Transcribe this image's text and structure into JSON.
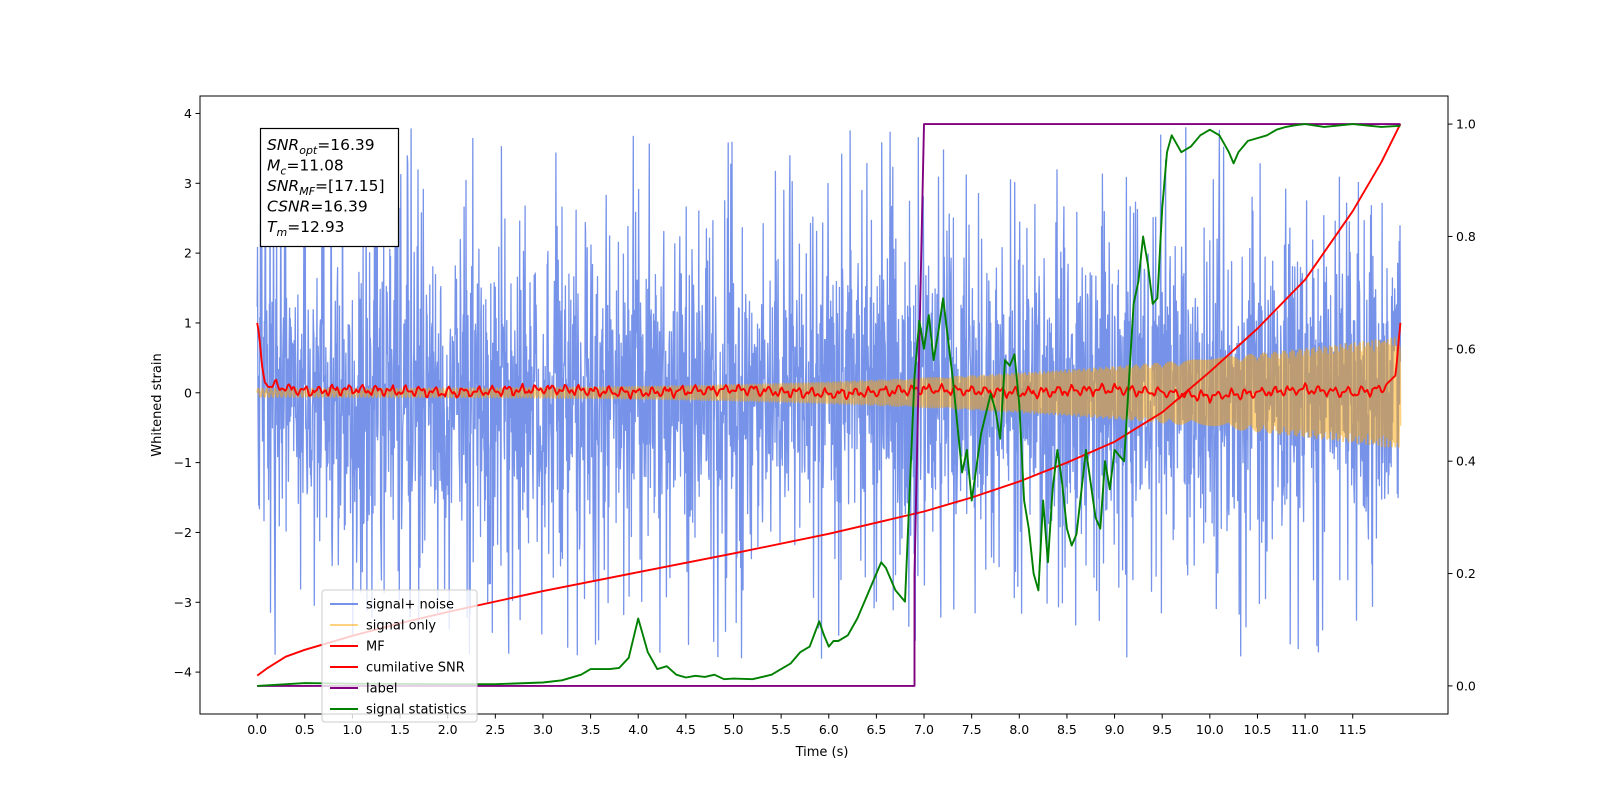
{
  "chart_data": {
    "type": "line",
    "title": "",
    "xlabel": "Time (s)",
    "ylabel": "Whitened strain",
    "ylabel_right": "",
    "xlim": [
      -0.6,
      12.5
    ],
    "ylim": [
      -4.6,
      4.25
    ],
    "ylim_right": [
      -0.05,
      1.05
    ],
    "xticks": [
      0.0,
      0.5,
      1.0,
      1.5,
      2.0,
      2.5,
      3.0,
      3.5,
      4.0,
      4.5,
      5.0,
      5.5,
      6.0,
      6.5,
      7.0,
      7.5,
      8.0,
      8.5,
      9.0,
      9.5,
      10.0,
      10.5,
      11.0,
      11.5
    ],
    "xtick_labels": [
      "0.0",
      "0.5",
      "1.0",
      "1.5",
      "2.0",
      "2.5",
      "3.0",
      "3.5",
      "4.0",
      "4.5",
      "5.0",
      "5.5",
      "6.0",
      "6.5",
      "7.0",
      "7.5",
      "8.0",
      "8.5",
      "9.0",
      "9.5",
      "10.0",
      "10.5",
      "11.0",
      "11.5"
    ],
    "yticks": [
      -4,
      -3,
      -2,
      -1,
      0,
      1,
      2,
      3,
      4
    ],
    "ytick_labels": [
      "−4",
      "−3",
      "−2",
      "−1",
      "0",
      "1",
      "2",
      "3",
      "4"
    ],
    "yticks_right": [
      0.0,
      0.2,
      0.4,
      0.6,
      0.8,
      1.0
    ],
    "ytick_labels_right": [
      "0.0",
      "0.2",
      "0.4",
      "0.6",
      "0.8",
      "1.0"
    ],
    "grid": false,
    "legend_position": "lower-left",
    "info_box": [
      {
        "sym": "SNR",
        "sub": "opt",
        "text": "=16.39"
      },
      {
        "sym": "M",
        "sub": "c",
        "text": "=11.08"
      },
      {
        "sym": "SNR",
        "sub": "MF",
        "text": "=[17.15]"
      },
      {
        "sym": "CSNR",
        "sub": "",
        "text": "=16.39"
      },
      {
        "sym": "T",
        "sub": "m",
        "text": "=12.93"
      }
    ],
    "series": [
      {
        "name": "signal+ noise",
        "color": "#4169e1",
        "axis": "left",
        "style": "noise",
        "x_range": [
          0.0,
          12.0
        ],
        "amplitude_std": 1.15,
        "peak_range": [
          -4.1,
          3.9
        ]
      },
      {
        "name": "signal only",
        "color": "#ffa500",
        "axis": "left",
        "style": "chirp",
        "x_range": [
          0.0,
          12.0
        ],
        "amplitude_start": 0.06,
        "amplitude_end": 0.8
      },
      {
        "name": "MF",
        "color": "#ff0000",
        "axis": "left",
        "x": [
          0.0,
          0.02,
          0.05,
          0.08,
          0.12,
          0.2,
          0.5,
          1.0,
          2.0,
          3.0,
          4.0,
          5.0,
          6.0,
          7.0,
          8.0,
          9.0,
          10.0,
          11.0,
          11.5,
          11.8,
          11.95,
          12.0
        ],
        "y": [
          1.0,
          0.85,
          0.4,
          0.15,
          0.08,
          0.1,
          0.02,
          0.05,
          0.0,
          0.05,
          0.0,
          0.05,
          -0.02,
          0.05,
          0.0,
          0.05,
          -0.05,
          0.05,
          0.0,
          0.05,
          0.25,
          1.0
        ],
        "wiggle": 0.045
      },
      {
        "name": "cumilative SNR",
        "color": "#ff0000",
        "axis": "left",
        "x": [
          0.0,
          0.1,
          0.3,
          0.5,
          1.0,
          1.5,
          2.0,
          3.0,
          4.0,
          5.0,
          6.0,
          7.0,
          7.5,
          8.0,
          8.5,
          9.0,
          9.5,
          10.0,
          10.5,
          11.0,
          11.5,
          11.8,
          12.0
        ],
        "y": [
          -4.05,
          -3.95,
          -3.78,
          -3.68,
          -3.48,
          -3.3,
          -3.14,
          -2.84,
          -2.57,
          -2.3,
          -2.02,
          -1.7,
          -1.5,
          -1.27,
          -1.0,
          -0.7,
          -0.28,
          0.3,
          0.92,
          1.62,
          2.6,
          3.3,
          3.85
        ]
      },
      {
        "name": "label",
        "color": "#800080",
        "axis": "right",
        "x": [
          0.0,
          6.9,
          6.9,
          7.0,
          12.0
        ],
        "y": [
          0.0,
          0.0,
          0.2,
          1.0,
          1.0
        ]
      },
      {
        "name": "signal statistics",
        "color": "#008000",
        "axis": "right",
        "x": [
          0.0,
          0.5,
          1.0,
          2.0,
          2.5,
          3.0,
          3.2,
          3.4,
          3.5,
          3.7,
          3.8,
          3.9,
          4.0,
          4.05,
          4.1,
          4.2,
          4.3,
          4.4,
          4.5,
          4.6,
          4.7,
          4.8,
          4.9,
          5.0,
          5.2,
          5.4,
          5.5,
          5.6,
          5.7,
          5.8,
          5.9,
          5.95,
          6.0,
          6.05,
          6.1,
          6.2,
          6.3,
          6.4,
          6.5,
          6.55,
          6.6,
          6.7,
          6.8,
          6.9,
          6.95,
          7.0,
          7.05,
          7.1,
          7.15,
          7.2,
          7.3,
          7.4,
          7.45,
          7.5,
          7.6,
          7.7,
          7.75,
          7.8,
          7.85,
          7.9,
          7.95,
          8.0,
          8.05,
          8.1,
          8.15,
          8.2,
          8.25,
          8.3,
          8.35,
          8.4,
          8.45,
          8.5,
          8.55,
          8.6,
          8.7,
          8.8,
          8.85,
          8.9,
          8.95,
          9.0,
          9.05,
          9.1,
          9.2,
          9.25,
          9.3,
          9.35,
          9.4,
          9.45,
          9.5,
          9.55,
          9.6,
          9.7,
          9.8,
          9.9,
          10.0,
          10.1,
          10.2,
          10.25,
          10.3,
          10.4,
          10.5,
          10.6,
          10.7,
          10.8,
          10.9,
          11.0,
          11.2,
          11.5,
          11.8,
          12.0
        ],
        "y": [
          0.0,
          0.005,
          0.004,
          0.003,
          0.003,
          0.006,
          0.01,
          0.02,
          0.03,
          0.03,
          0.032,
          0.05,
          0.12,
          0.09,
          0.06,
          0.03,
          0.035,
          0.02,
          0.015,
          0.018,
          0.016,
          0.02,
          0.012,
          0.013,
          0.012,
          0.02,
          0.03,
          0.04,
          0.06,
          0.07,
          0.115,
          0.09,
          0.07,
          0.08,
          0.08,
          0.09,
          0.12,
          0.16,
          0.2,
          0.22,
          0.21,
          0.17,
          0.15,
          0.55,
          0.65,
          0.6,
          0.66,
          0.58,
          0.63,
          0.69,
          0.55,
          0.38,
          0.42,
          0.33,
          0.45,
          0.52,
          0.49,
          0.44,
          0.58,
          0.57,
          0.59,
          0.5,
          0.33,
          0.28,
          0.2,
          0.17,
          0.33,
          0.22,
          0.35,
          0.42,
          0.36,
          0.28,
          0.25,
          0.27,
          0.42,
          0.3,
          0.28,
          0.4,
          0.35,
          0.42,
          0.41,
          0.4,
          0.68,
          0.72,
          0.8,
          0.75,
          0.68,
          0.69,
          0.85,
          0.95,
          0.98,
          0.95,
          0.96,
          0.98,
          0.99,
          0.98,
          0.95,
          0.93,
          0.95,
          0.97,
          0.975,
          0.98,
          0.99,
          0.995,
          0.998,
          1.0,
          0.995,
          1.0,
          0.995,
          0.997
        ]
      }
    ]
  }
}
